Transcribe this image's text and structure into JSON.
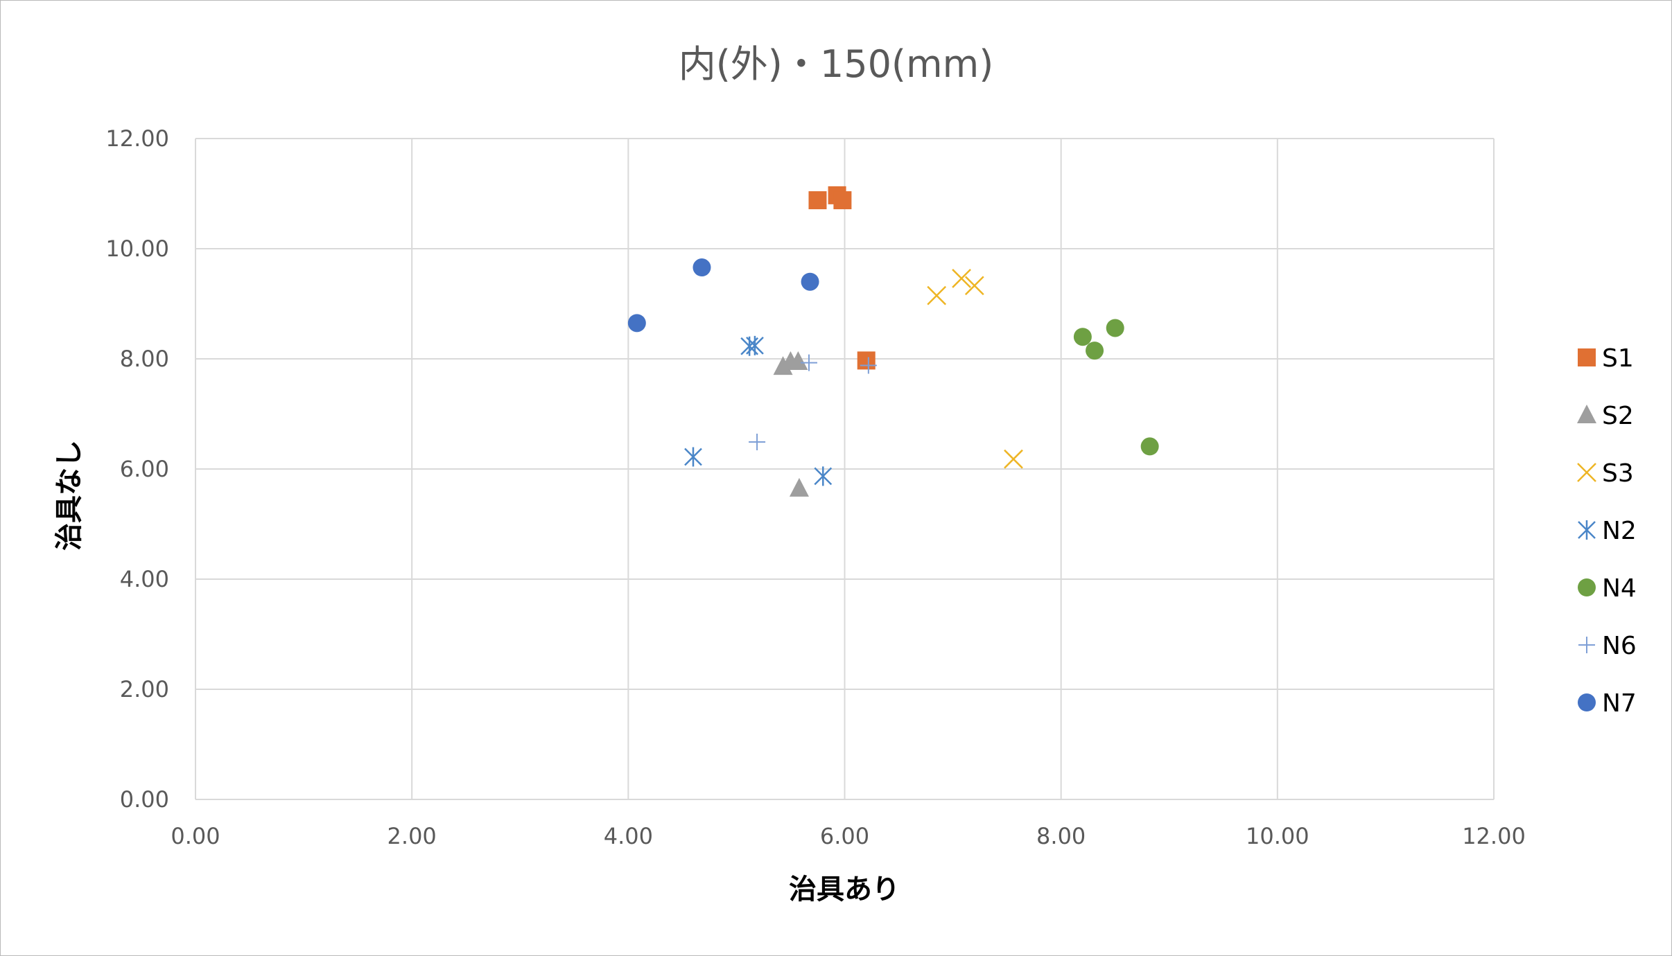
{
  "chart_data": {
    "type": "scatter",
    "title": "内(外)・150(mm)",
    "xlabel": "治具あり",
    "ylabel": "治具なし",
    "xlim": [
      0,
      12
    ],
    "ylim": [
      0,
      12
    ],
    "x_ticks": [
      "0.00",
      "2.00",
      "4.00",
      "6.00",
      "8.00",
      "10.00",
      "12.00"
    ],
    "y_ticks": [
      "0.00",
      "2.00",
      "4.00",
      "6.00",
      "8.00",
      "10.00",
      "12.00"
    ],
    "grid": true,
    "legend_position": "right",
    "series": [
      {
        "name": "S1",
        "marker": "square",
        "color": "#E07033",
        "points": [
          [
            5.75,
            10.88
          ],
          [
            5.93,
            10.97
          ],
          [
            5.98,
            10.88
          ],
          [
            6.2,
            7.97
          ]
        ]
      },
      {
        "name": "S2",
        "marker": "triangle",
        "color": "#9E9E9E",
        "points": [
          [
            5.43,
            7.86
          ],
          [
            5.5,
            7.95
          ],
          [
            5.57,
            7.95
          ],
          [
            5.58,
            5.65
          ]
        ]
      },
      {
        "name": "S3",
        "marker": "x",
        "color": "#EEB525",
        "points": [
          [
            6.85,
            9.15
          ],
          [
            7.08,
            9.46
          ],
          [
            7.2,
            9.33
          ],
          [
            7.56,
            6.18
          ]
        ]
      },
      {
        "name": "N2",
        "marker": "star",
        "color": "#4A86C8",
        "points": [
          [
            5.12,
            8.23
          ],
          [
            5.17,
            8.24
          ],
          [
            4.6,
            6.22
          ],
          [
            5.8,
            5.87
          ]
        ]
      },
      {
        "name": "N4",
        "marker": "circle",
        "color": "#6EA043",
        "points": [
          [
            8.2,
            8.4
          ],
          [
            8.31,
            8.15
          ],
          [
            8.5,
            8.56
          ],
          [
            8.82,
            6.41
          ]
        ]
      },
      {
        "name": "N6",
        "marker": "plus",
        "color": "#7E9FD6",
        "points": [
          [
            5.67,
            7.93
          ],
          [
            6.22,
            7.88
          ],
          [
            5.19,
            6.49
          ]
        ]
      },
      {
        "name": "N7",
        "marker": "circle",
        "color": "#4472C4",
        "points": [
          [
            4.08,
            8.65
          ],
          [
            4.68,
            9.66
          ],
          [
            5.68,
            9.4
          ]
        ]
      }
    ]
  }
}
